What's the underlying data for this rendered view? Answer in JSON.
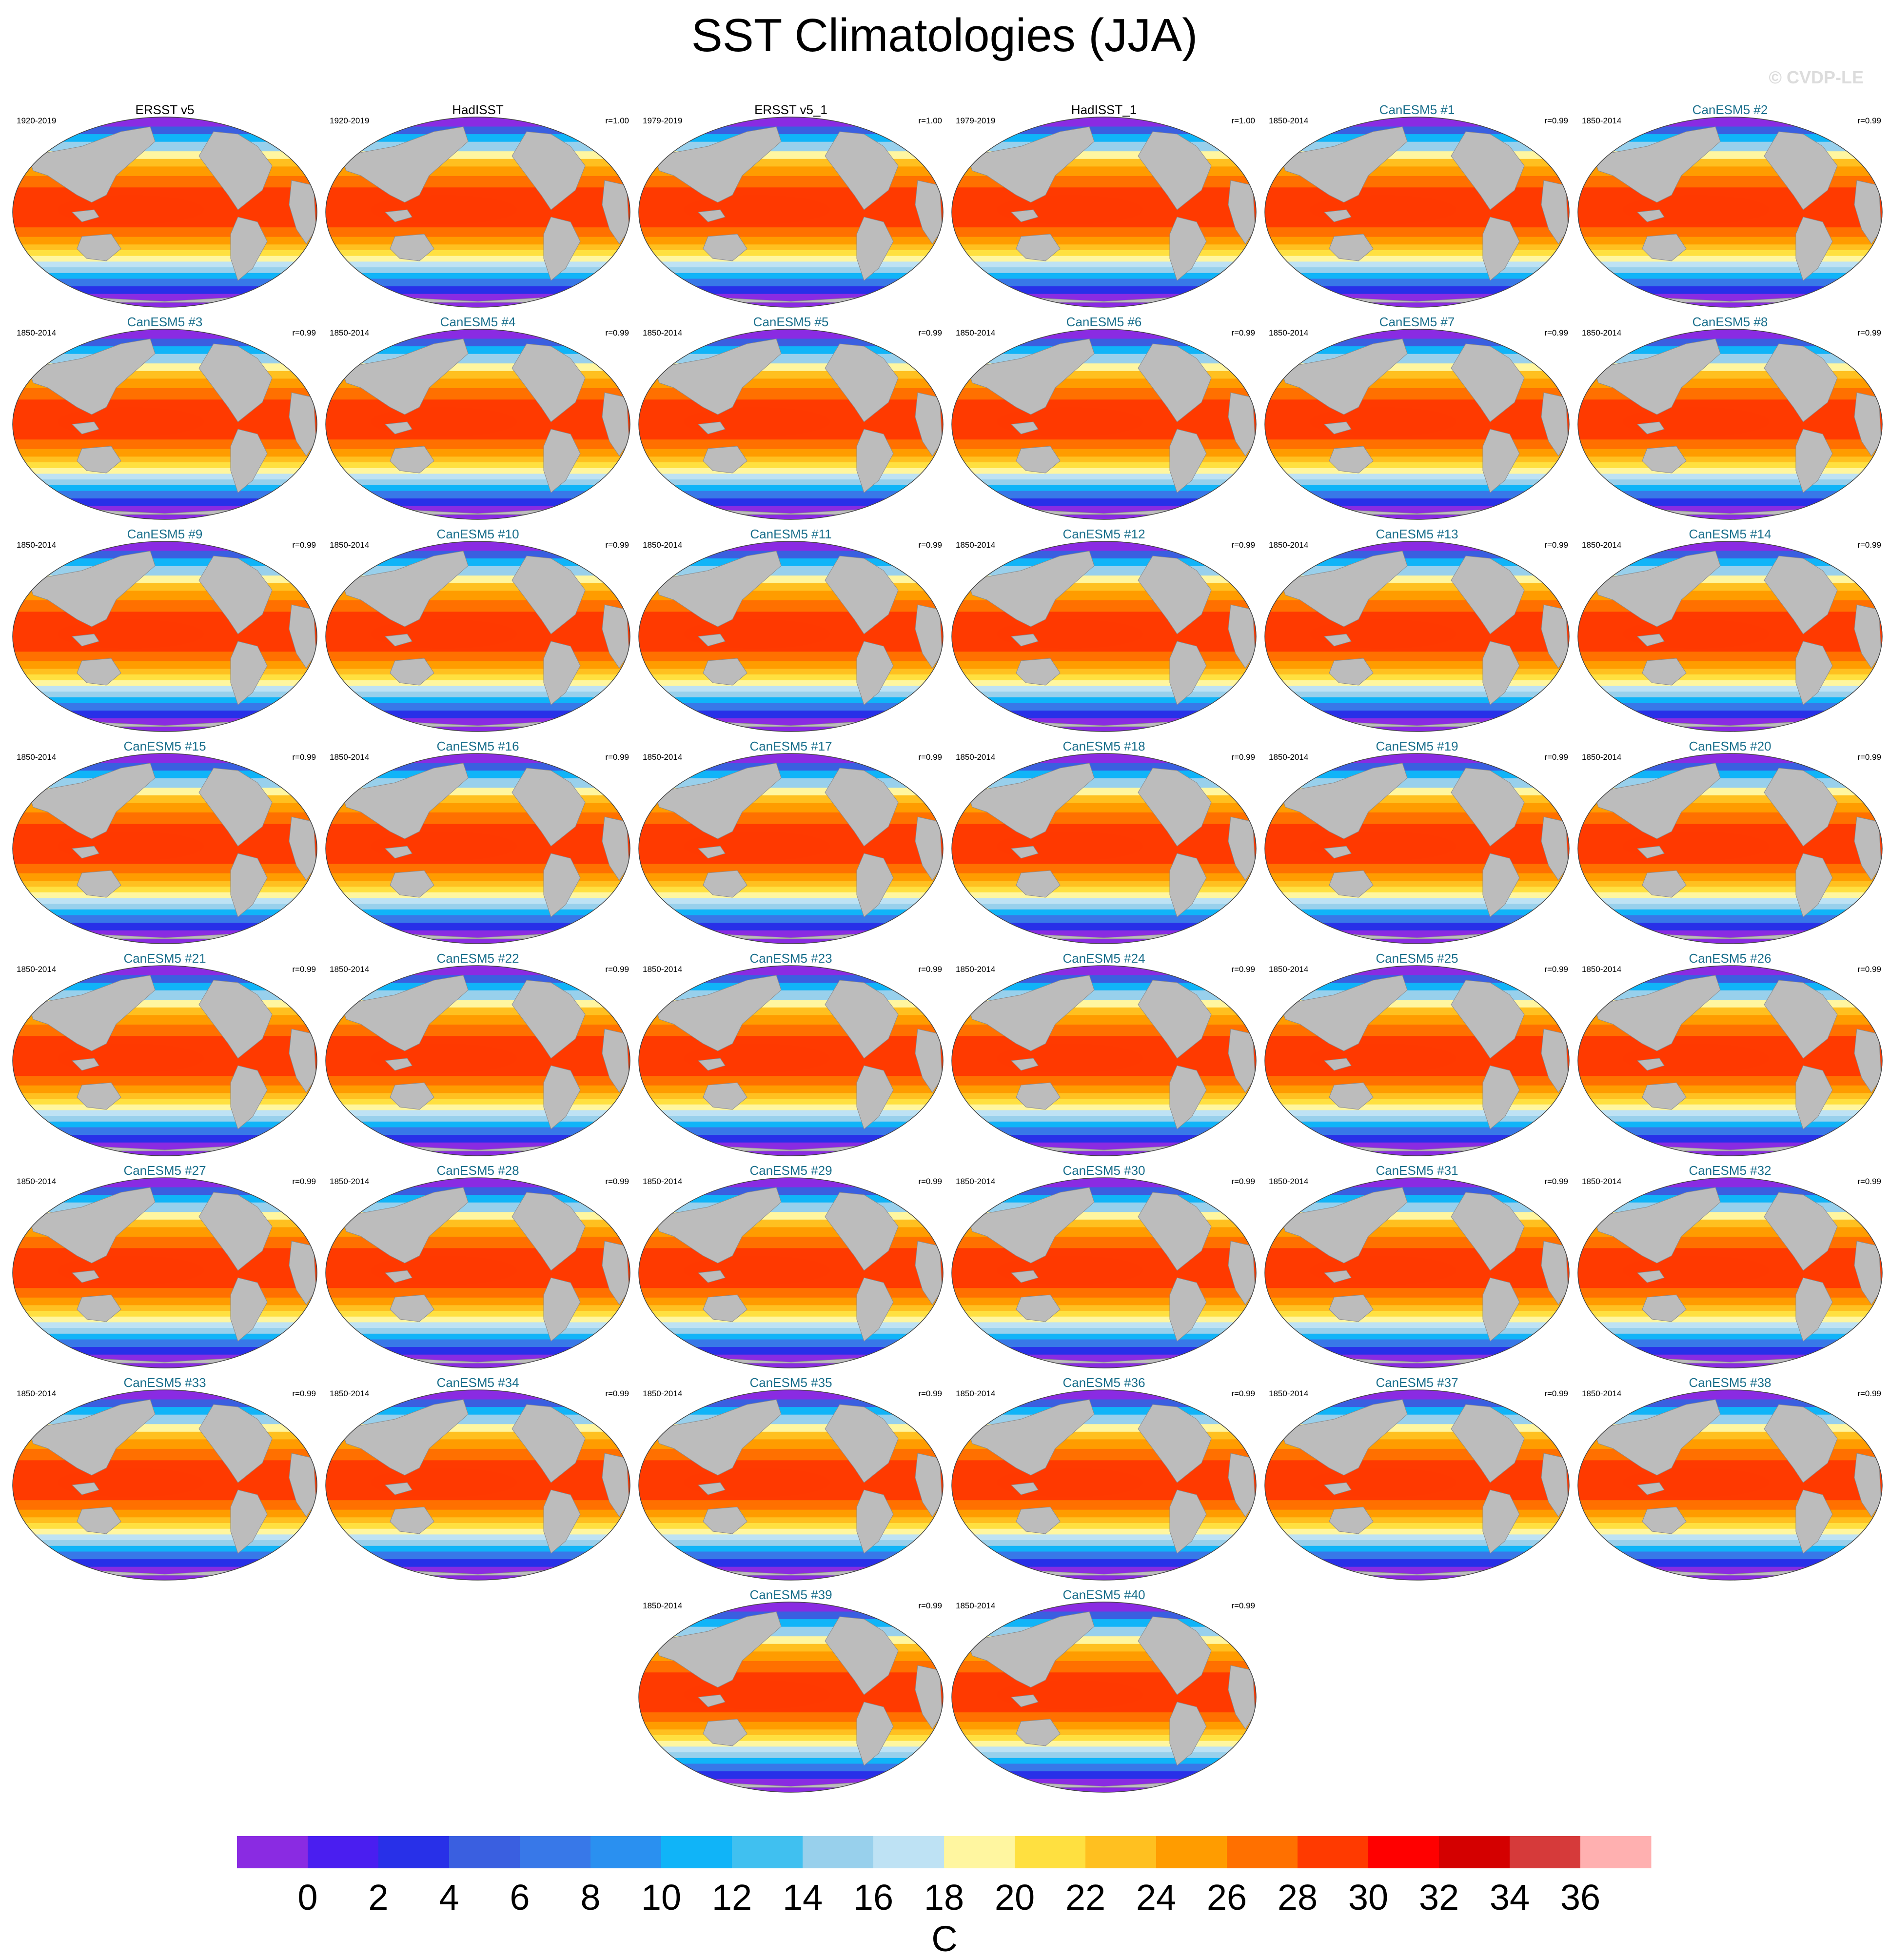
{
  "title": "SST Climatologies (JJA)",
  "watermark": "© CVDP-LE",
  "chart_data": {
    "type": "heatmap",
    "title": "SST Climatologies (JJA)",
    "projection": "Robinson world map, Pacific-centred",
    "colorbar": {
      "label": "C",
      "ticks": [
        0,
        2,
        4,
        6,
        8,
        10,
        12,
        14,
        16,
        18,
        20,
        22,
        24,
        26,
        28,
        30,
        32,
        34,
        36
      ],
      "tick_labels": [
        "0",
        "2",
        "4",
        "6",
        "8",
        "10",
        "12",
        "14",
        "16",
        "18",
        "20",
        "22",
        "24",
        "26",
        "28",
        "30",
        "32",
        "34",
        "36"
      ],
      "colors": [
        "#8a2be2",
        "#4a1ef0",
        "#2830e8",
        "#3a5fe0",
        "#3878e8",
        "#2a90f0",
        "#10b4f8",
        "#40c0f0",
        "#98d0ec",
        "#bee2f4",
        "#fff6a0",
        "#ffe040",
        "#ffc020",
        "#ff9c00",
        "#ff7000",
        "#ff3a00",
        "#ff0000",
        "#d40000",
        "#d63a3a",
        "#ffb0b0"
      ]
    },
    "panels": [
      {
        "name": "ERSST v5",
        "period": "1920-2019",
        "r": "",
        "kind": "obs"
      },
      {
        "name": "HadISST",
        "period": "1920-2019",
        "r": "r=1.00",
        "kind": "obs"
      },
      {
        "name": "ERSST v5_1",
        "period": "1979-2019",
        "r": "r=1.00",
        "kind": "obs"
      },
      {
        "name": "HadISST_1",
        "period": "1979-2019",
        "r": "r=1.00",
        "kind": "obs"
      },
      {
        "name": "CanESM5 #1",
        "period": "1850-2014",
        "r": "r=0.99",
        "kind": "model"
      },
      {
        "name": "CanESM5 #2",
        "period": "1850-2014",
        "r": "r=0.99",
        "kind": "model"
      },
      {
        "name": "CanESM5 #3",
        "period": "1850-2014",
        "r": "r=0.99",
        "kind": "model"
      },
      {
        "name": "CanESM5 #4",
        "period": "1850-2014",
        "r": "r=0.99",
        "kind": "model"
      },
      {
        "name": "CanESM5 #5",
        "period": "1850-2014",
        "r": "r=0.99",
        "kind": "model"
      },
      {
        "name": "CanESM5 #6",
        "period": "1850-2014",
        "r": "r=0.99",
        "kind": "model"
      },
      {
        "name": "CanESM5 #7",
        "period": "1850-2014",
        "r": "r=0.99",
        "kind": "model"
      },
      {
        "name": "CanESM5 #8",
        "period": "1850-2014",
        "r": "r=0.99",
        "kind": "model"
      },
      {
        "name": "CanESM5 #9",
        "period": "1850-2014",
        "r": "r=0.99",
        "kind": "model"
      },
      {
        "name": "CanESM5 #10",
        "period": "1850-2014",
        "r": "r=0.99",
        "kind": "model"
      },
      {
        "name": "CanESM5 #11",
        "period": "1850-2014",
        "r": "r=0.99",
        "kind": "model"
      },
      {
        "name": "CanESM5 #12",
        "period": "1850-2014",
        "r": "r=0.99",
        "kind": "model"
      },
      {
        "name": "CanESM5 #13",
        "period": "1850-2014",
        "r": "r=0.99",
        "kind": "model"
      },
      {
        "name": "CanESM5 #14",
        "period": "1850-2014",
        "r": "r=0.99",
        "kind": "model"
      },
      {
        "name": "CanESM5 #15",
        "period": "1850-2014",
        "r": "r=0.99",
        "kind": "model"
      },
      {
        "name": "CanESM5 #16",
        "period": "1850-2014",
        "r": "r=0.99",
        "kind": "model"
      },
      {
        "name": "CanESM5 #17",
        "period": "1850-2014",
        "r": "r=0.99",
        "kind": "model"
      },
      {
        "name": "CanESM5 #18",
        "period": "1850-2014",
        "r": "r=0.99",
        "kind": "model"
      },
      {
        "name": "CanESM5 #19",
        "period": "1850-2014",
        "r": "r=0.99",
        "kind": "model"
      },
      {
        "name": "CanESM5 #20",
        "period": "1850-2014",
        "r": "r=0.99",
        "kind": "model"
      },
      {
        "name": "CanESM5 #21",
        "period": "1850-2014",
        "r": "r=0.99",
        "kind": "model"
      },
      {
        "name": "CanESM5 #22",
        "period": "1850-2014",
        "r": "r=0.99",
        "kind": "model"
      },
      {
        "name": "CanESM5 #23",
        "period": "1850-2014",
        "r": "r=0.99",
        "kind": "model"
      },
      {
        "name": "CanESM5 #24",
        "period": "1850-2014",
        "r": "r=0.99",
        "kind": "model"
      },
      {
        "name": "CanESM5 #25",
        "period": "1850-2014",
        "r": "r=0.99",
        "kind": "model"
      },
      {
        "name": "CanESM5 #26",
        "period": "1850-2014",
        "r": "r=0.99",
        "kind": "model"
      },
      {
        "name": "CanESM5 #27",
        "period": "1850-2014",
        "r": "r=0.99",
        "kind": "model"
      },
      {
        "name": "CanESM5 #28",
        "period": "1850-2014",
        "r": "r=0.99",
        "kind": "model"
      },
      {
        "name": "CanESM5 #29",
        "period": "1850-2014",
        "r": "r=0.99",
        "kind": "model"
      },
      {
        "name": "CanESM5 #30",
        "period": "1850-2014",
        "r": "r=0.99",
        "kind": "model"
      },
      {
        "name": "CanESM5 #31",
        "period": "1850-2014",
        "r": "r=0.99",
        "kind": "model"
      },
      {
        "name": "CanESM5 #32",
        "period": "1850-2014",
        "r": "r=0.99",
        "kind": "model"
      },
      {
        "name": "CanESM5 #33",
        "period": "1850-2014",
        "r": "r=0.99",
        "kind": "model"
      },
      {
        "name": "CanESM5 #34",
        "period": "1850-2014",
        "r": "r=0.99",
        "kind": "model"
      },
      {
        "name": "CanESM5 #35",
        "period": "1850-2014",
        "r": "r=0.99",
        "kind": "model"
      },
      {
        "name": "CanESM5 #36",
        "period": "1850-2014",
        "r": "r=0.99",
        "kind": "model"
      },
      {
        "name": "CanESM5 #37",
        "period": "1850-2014",
        "r": "r=0.99",
        "kind": "model"
      },
      {
        "name": "CanESM5 #38",
        "period": "1850-2014",
        "r": "r=0.99",
        "kind": "model"
      },
      {
        "name": "CanESM5 #39",
        "period": "1850-2014",
        "r": "r=0.99",
        "kind": "model"
      },
      {
        "name": "CanESM5 #40",
        "period": "1850-2014",
        "r": "r=0.99",
        "kind": "model"
      }
    ]
  }
}
